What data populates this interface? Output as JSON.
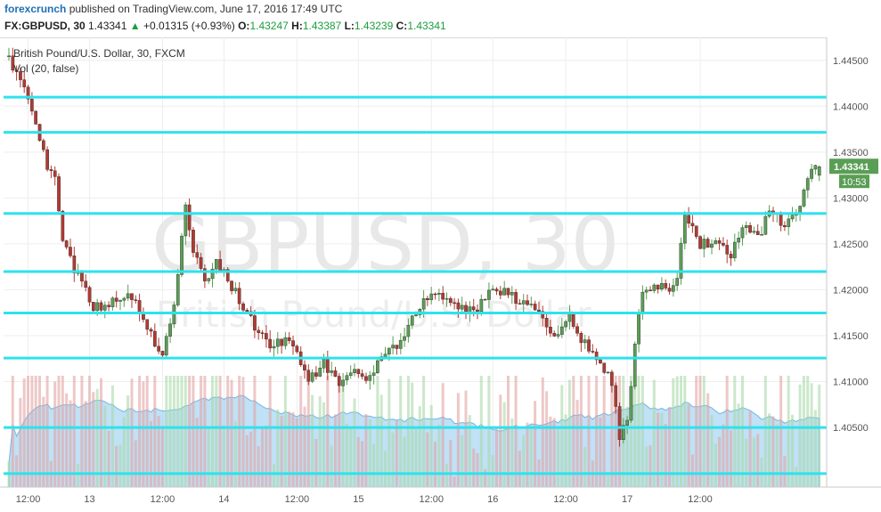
{
  "header": {
    "brand": "forexcrunch",
    "published": " published on TradingView.com, June 17, 2016 17:49 UTC",
    "symbol": "FX:GBPUSD, 30",
    "last": "1.43341",
    "arrow": "▲",
    "change": "+0.01315 (+0.93%)",
    "o_label": "O:",
    "o": "1.43247",
    "h_label": "H:",
    "h": "1.43387",
    "l_label": "L:",
    "l": "1.43239",
    "c_label": "C:",
    "c": "1.43341"
  },
  "legend": {
    "series_title": "British Pound/U.S. Dollar, 30, FXCM",
    "indicator": "Vol (20, false)"
  },
  "watermark": {
    "main": "GBPUSD, 30",
    "sub": "British Pound/U.S. Dollar"
  },
  "colors": {
    "up": "#5a9e55",
    "down": "#b23a32",
    "level_line": "#2de2ee",
    "vol_up": "#a8d8a8",
    "vol_down": "#e3a3a3",
    "vol_ma": "#8cc8ee",
    "price_badge": "#5a9e55"
  },
  "chart_data": {
    "type": "candlestick",
    "title": "British Pound/U.S. Dollar, 30, FXCM",
    "ylim": [
      1.3985,
      1.4475
    ],
    "y_ticks": [
      "1.44500",
      "1.44000",
      "1.43500",
      "1.43000",
      "1.42500",
      "1.42000",
      "1.41500",
      "1.41000",
      "1.40500"
    ],
    "x_ticks": [
      "12:00",
      "13",
      "12:00",
      "14",
      "12:00",
      "15",
      "12:00",
      "16",
      "12:00",
      "17",
      "12:00"
    ],
    "levels": [
      {
        "label": "1.44099",
        "value": 1.44099
      },
      {
        "label": "1.43716",
        "value": 1.43716
      },
      {
        "label": "1.42831",
        "value": 1.42831
      },
      {
        "label": "1.42198",
        "value": 1.42198
      },
      {
        "label": "1.41747",
        "value": 1.41747
      },
      {
        "label": "1.41256",
        "value": 1.41256
      },
      {
        "label": "1.40499",
        "value": 1.40499
      },
      {
        "label": "1.39997",
        "value": 1.39997
      }
    ],
    "current_price": "1.43341",
    "countdown": "10:53",
    "path": [
      [
        0,
        1.445
      ],
      [
        6,
        1.44
      ],
      [
        10,
        1.433
      ],
      [
        12,
        1.432
      ],
      [
        14,
        1.425
      ],
      [
        18,
        1.4215
      ],
      [
        22,
        1.418
      ],
      [
        26,
        1.4185
      ],
      [
        30,
        1.4195
      ],
      [
        34,
        1.418
      ],
      [
        38,
        1.414
      ],
      [
        40,
        1.413
      ],
      [
        43,
        1.418
      ],
      [
        46,
        1.429
      ],
      [
        48,
        1.424
      ],
      [
        51,
        1.421
      ],
      [
        54,
        1.423
      ],
      [
        57,
        1.421
      ],
      [
        60,
        1.419
      ],
      [
        64,
        1.416
      ],
      [
        68,
        1.414
      ],
      [
        72,
        1.4145
      ],
      [
        75,
        1.413
      ],
      [
        78,
        1.41
      ],
      [
        82,
        1.412
      ],
      [
        86,
        1.41
      ],
      [
        90,
        1.411
      ],
      [
        94,
        1.4105
      ],
      [
        98,
        1.413
      ],
      [
        102,
        1.4145
      ],
      [
        106,
        1.4175
      ],
      [
        110,
        1.4195
      ],
      [
        114,
        1.419
      ],
      [
        118,
        1.418
      ],
      [
        122,
        1.418
      ],
      [
        126,
        1.42
      ],
      [
        130,
        1.4195
      ],
      [
        134,
        1.4185
      ],
      [
        138,
        1.4175
      ],
      [
        142,
        1.415
      ],
      [
        146,
        1.417
      ],
      [
        150,
        1.414
      ],
      [
        154,
        1.412
      ],
      [
        157,
        1.41
      ],
      [
        159,
        1.404
      ],
      [
        161,
        1.406
      ],
      [
        163,
        1.414
      ],
      [
        165,
        1.42
      ],
      [
        168,
        1.4205
      ],
      [
        171,
        1.42
      ],
      [
        174,
        1.421
      ],
      [
        176,
        1.4285
      ],
      [
        180,
        1.425
      ],
      [
        184,
        1.425
      ],
      [
        188,
        1.424
      ],
      [
        192,
        1.427
      ],
      [
        196,
        1.426
      ],
      [
        198,
        1.429
      ],
      [
        202,
        1.427
      ],
      [
        206,
        1.429
      ],
      [
        208,
        1.432
      ],
      [
        210,
        1.4334
      ]
    ]
  }
}
